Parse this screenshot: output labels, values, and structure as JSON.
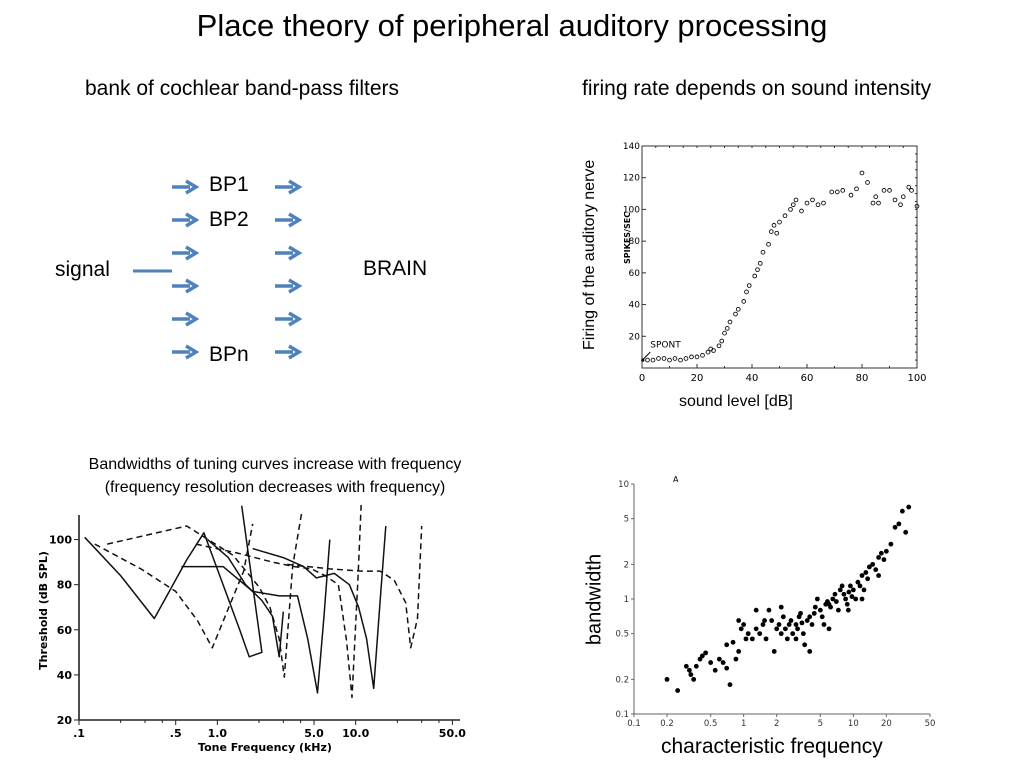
{
  "title": "Place theory of peripheral auditory processing",
  "left_subtitle": "bank of cochlear band-pass filters",
  "right_subtitle": "firing rate depends on sound intensity",
  "filter_bank": {
    "input_label": "signal",
    "output_label": "BRAIN",
    "filters": [
      "BP1",
      "BP2",
      "",
      "",
      "",
      "BPn"
    ],
    "arrow_color": "#4f81bd"
  },
  "tuning_caption_line1": "Bandwidths of tuning curves increase with frequency",
  "tuning_caption_line2": "(frequency resolution decreases with frequency)",
  "chart_data": [
    {
      "type": "scatter",
      "title": "",
      "xlabel": "sound level [dB]",
      "ylabel": "Firing of the auditory nerve",
      "inner_ylabel": "SPIKES/SEC",
      "annotation": "SPONT",
      "xlim": [
        0,
        100
      ],
      "ylim": [
        0,
        140
      ],
      "x_ticks": [
        0,
        20,
        40,
        60,
        80,
        100
      ],
      "y_ticks": [
        20,
        40,
        60,
        80,
        100,
        120,
        140
      ],
      "marker": "open-circle",
      "points": [
        [
          2,
          5
        ],
        [
          4,
          5
        ],
        [
          6,
          6
        ],
        [
          8,
          6
        ],
        [
          10,
          5
        ],
        [
          12,
          6
        ],
        [
          14,
          5
        ],
        [
          16,
          6
        ],
        [
          18,
          7
        ],
        [
          20,
          7
        ],
        [
          22,
          8
        ],
        [
          24,
          10
        ],
        [
          25,
          12
        ],
        [
          26,
          11
        ],
        [
          28,
          14
        ],
        [
          29,
          17
        ],
        [
          30,
          22
        ],
        [
          31,
          25
        ],
        [
          32,
          29
        ],
        [
          34,
          34
        ],
        [
          35,
          37
        ],
        [
          37,
          42
        ],
        [
          38,
          48
        ],
        [
          39,
          52
        ],
        [
          41,
          58
        ],
        [
          42,
          62
        ],
        [
          43,
          66
        ],
        [
          44,
          73
        ],
        [
          46,
          78
        ],
        [
          47,
          86
        ],
        [
          48,
          90
        ],
        [
          49,
          85
        ],
        [
          50,
          92
        ],
        [
          52,
          96
        ],
        [
          54,
          100
        ],
        [
          55,
          103
        ],
        [
          56,
          106
        ],
        [
          58,
          99
        ],
        [
          60,
          104
        ],
        [
          62,
          106
        ],
        [
          64,
          103
        ],
        [
          66,
          104
        ],
        [
          69,
          111
        ],
        [
          71,
          111
        ],
        [
          73,
          112
        ],
        [
          76,
          109
        ],
        [
          78,
          113
        ],
        [
          80,
          123
        ],
        [
          82,
          117
        ],
        [
          84,
          104
        ],
        [
          85,
          108
        ],
        [
          86,
          104
        ],
        [
          88,
          112
        ],
        [
          90,
          112
        ],
        [
          92,
          106
        ],
        [
          94,
          103
        ],
        [
          95,
          108
        ],
        [
          97,
          114
        ],
        [
          98,
          112
        ],
        [
          100,
          102
        ]
      ]
    },
    {
      "type": "line",
      "title": "",
      "xlabel": "Tone Frequency (kHz)",
      "ylabel": "Threshold (dB SPL)",
      "x_scale": "log",
      "xlim": [
        0.1,
        50
      ],
      "ylim": [
        20,
        110
      ],
      "x_ticks": [
        ".1",
        ".5",
        "1.0",
        "5.0",
        "10.0",
        "50.0"
      ],
      "y_ticks": [
        20,
        40,
        60,
        80,
        100
      ],
      "series": [
        {
          "style": "solid",
          "points": [
            [
              0.11,
              101
            ],
            [
              0.2,
              84
            ],
            [
              0.35,
              65
            ],
            [
              0.6,
              91
            ],
            [
              0.8,
              103
            ],
            [
              1.1,
              80
            ],
            [
              1.45,
              60
            ],
            [
              1.7,
              48
            ],
            [
              2.1,
              50
            ],
            [
              1.5,
              115
            ]
          ]
        },
        {
          "style": "dashed",
          "points": [
            [
              0.13,
              98
            ],
            [
              0.28,
              87
            ],
            [
              0.5,
              77
            ],
            [
              0.72,
              64
            ],
            [
              0.92,
              52
            ],
            [
              1.25,
              72
            ],
            [
              1.55,
              86
            ],
            [
              1.8,
              107
            ]
          ]
        },
        {
          "style": "solid",
          "points": [
            [
              0.85,
              100
            ],
            [
              1.2,
              92
            ],
            [
              1.6,
              80
            ],
            [
              2.1,
              73
            ],
            [
              2.5,
              66
            ],
            [
              2.8,
              48
            ],
            [
              3.0,
              68
            ]
          ]
        },
        {
          "style": "dashed",
          "points": [
            [
              0.16,
              98
            ],
            [
              0.6,
              106
            ],
            [
              1.3,
              93
            ],
            [
              2.0,
              79
            ],
            [
              2.4,
              70
            ],
            [
              2.8,
              56
            ],
            [
              3.05,
              39
            ],
            [
              3.5,
              88
            ],
            [
              4.1,
              113
            ]
          ]
        },
        {
          "style": "solid",
          "points": [
            [
              0.55,
              88
            ],
            [
              1.1,
              88
            ],
            [
              1.8,
              77
            ],
            [
              2.8,
              75
            ],
            [
              3.8,
              75
            ],
            [
              4.5,
              56
            ],
            [
              5.3,
              32
            ],
            [
              5.9,
              66
            ],
            [
              6.5,
              100
            ]
          ]
        },
        {
          "style": "dashed",
          "points": [
            [
              0.7,
              98
            ],
            [
              1.4,
              94
            ],
            [
              2.5,
              90
            ],
            [
              3.6,
              88
            ],
            [
              4.8,
              87
            ],
            [
              6.0,
              84
            ],
            [
              7.5,
              80
            ],
            [
              8.6,
              55
            ],
            [
              9.4,
              30
            ],
            [
              10.4,
              83
            ],
            [
              11.0,
              118
            ]
          ]
        },
        {
          "style": "solid",
          "points": [
            [
              1.8,
              96
            ],
            [
              3.0,
              92
            ],
            [
              4.2,
              88
            ],
            [
              5.2,
              83
            ],
            [
              7.0,
              85
            ],
            [
              9.0,
              80
            ],
            [
              10.5,
              70
            ],
            [
              12.0,
              56
            ],
            [
              13.5,
              34
            ],
            [
              15.0,
              72
            ],
            [
              16.5,
              106
            ]
          ]
        },
        {
          "style": "dashed",
          "points": [
            [
              3.2,
              89
            ],
            [
              6.5,
              87
            ],
            [
              11.0,
              86
            ],
            [
              15.0,
              86
            ],
            [
              19.0,
              82
            ],
            [
              23.0,
              72
            ],
            [
              25.0,
              52
            ],
            [
              28.0,
              65
            ],
            [
              30.0,
              106
            ]
          ]
        }
      ]
    },
    {
      "type": "scatter",
      "title": "",
      "panel_label": "A",
      "xlabel": "characteristic frequency",
      "ylabel": "bandwidth",
      "x_scale": "log",
      "y_scale": "log",
      "xlim": [
        0.1,
        50
      ],
      "ylim": [
        0.1,
        10
      ],
      "x_ticks": [
        "0.1",
        "0.2",
        "0.5",
        "1",
        "2",
        "5",
        "10",
        "20",
        "50"
      ],
      "y_ticks": [
        "0.1",
        "0.2",
        "0.5",
        "1",
        "2",
        "5",
        "10"
      ],
      "marker": "filled-circle",
      "points": [
        [
          0.2,
          0.2
        ],
        [
          0.25,
          0.16
        ],
        [
          0.3,
          0.26
        ],
        [
          0.32,
          0.24
        ],
        [
          0.33,
          0.22
        ],
        [
          0.35,
          0.2
        ],
        [
          0.37,
          0.26
        ],
        [
          0.4,
          0.3
        ],
        [
          0.42,
          0.32
        ],
        [
          0.45,
          0.34
        ],
        [
          0.5,
          0.28
        ],
        [
          0.55,
          0.24
        ],
        [
          0.6,
          0.3
        ],
        [
          0.65,
          0.28
        ],
        [
          0.7,
          0.25
        ],
        [
          0.75,
          0.18
        ],
        [
          0.7,
          0.4
        ],
        [
          0.8,
          0.42
        ],
        [
          0.85,
          0.3
        ],
        [
          0.9,
          0.35
        ],
        [
          0.95,
          0.55
        ],
        [
          1.0,
          0.6
        ],
        [
          1.05,
          0.45
        ],
        [
          1.1,
          0.5
        ],
        [
          1.2,
          0.45
        ],
        [
          1.3,
          0.55
        ],
        [
          1.4,
          0.5
        ],
        [
          1.5,
          0.6
        ],
        [
          1.55,
          0.65
        ],
        [
          1.6,
          0.45
        ],
        [
          1.7,
          0.8
        ],
        [
          1.8,
          0.65
        ],
        [
          1.9,
          0.35
        ],
        [
          2.0,
          0.55
        ],
        [
          2.1,
          0.6
        ],
        [
          2.2,
          0.5
        ],
        [
          2.3,
          0.7
        ],
        [
          2.4,
          0.55
        ],
        [
          2.5,
          0.45
        ],
        [
          2.6,
          0.6
        ],
        [
          2.7,
          0.65
        ],
        [
          2.8,
          0.5
        ],
        [
          3.0,
          0.6
        ],
        [
          3.1,
          0.55
        ],
        [
          3.2,
          0.7
        ],
        [
          3.3,
          0.75
        ],
        [
          3.4,
          0.62
        ],
        [
          3.5,
          0.5
        ],
        [
          3.6,
          0.4
        ],
        [
          3.8,
          0.65
        ],
        [
          4.0,
          0.7
        ],
        [
          4.2,
          0.6
        ],
        [
          4.4,
          0.75
        ],
        [
          4.5,
          0.85
        ],
        [
          4.7,
          1.0
        ],
        [
          5.0,
          0.8
        ],
        [
          5.2,
          0.7
        ],
        [
          5.4,
          0.6
        ],
        [
          5.6,
          0.9
        ],
        [
          5.8,
          0.95
        ],
        [
          6.0,
          0.9
        ],
        [
          6.2,
          0.85
        ],
        [
          6.5,
          1.0
        ],
        [
          6.8,
          1.1
        ],
        [
          7.0,
          0.95
        ],
        [
          7.3,
          0.8
        ],
        [
          7.6,
          1.2
        ],
        [
          7.9,
          1.3
        ],
        [
          8.2,
          1.1
        ],
        [
          8.5,
          1.0
        ],
        [
          8.8,
          0.9
        ],
        [
          9.1,
          1.15
        ],
        [
          9.4,
          1.3
        ],
        [
          9.7,
          1.05
        ],
        [
          10.0,
          1.2
        ],
        [
          10.5,
          1.0
        ],
        [
          11.0,
          1.4
        ],
        [
          11.5,
          1.3
        ],
        [
          12.0,
          1.6
        ],
        [
          12.5,
          1.2
        ],
        [
          13.0,
          1.7
        ],
        [
          13.5,
          1.5
        ],
        [
          14.0,
          1.9
        ],
        [
          15.0,
          2.0
        ],
        [
          16.0,
          1.8
        ],
        [
          17.0,
          2.3
        ],
        [
          18.0,
          2.5
        ],
        [
          19.0,
          2.2
        ],
        [
          20.0,
          2.6
        ],
        [
          22.0,
          3.0
        ],
        [
          24.0,
          4.2
        ],
        [
          26.0,
          4.5
        ],
        [
          28.0,
          5.8
        ],
        [
          30.0,
          3.8
        ],
        [
          32.0,
          6.3
        ],
        [
          0.9,
          0.65
        ],
        [
          1.3,
          0.8
        ],
        [
          2.2,
          0.85
        ],
        [
          3.0,
          0.45
        ],
        [
          4.0,
          0.35
        ],
        [
          6.0,
          0.55
        ],
        [
          9.0,
          0.8
        ],
        [
          12.0,
          1.0
        ],
        [
          17.0,
          1.6
        ]
      ]
    }
  ]
}
